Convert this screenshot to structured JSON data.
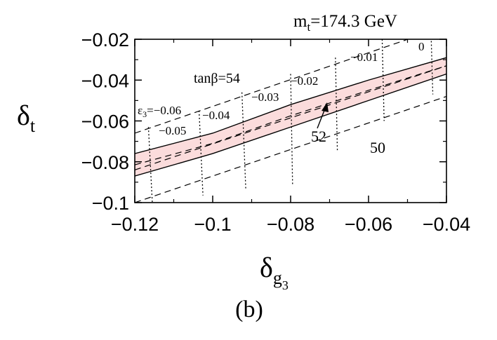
{
  "chart_data": {
    "type": "line",
    "mass_label": "m t=174.3 GeV",
    "mass_parts": {
      "m": "m",
      "sub": "t",
      "value": "=174.3 GeV"
    },
    "panel_label": "(b)",
    "ylabel": {
      "base": "δ",
      "sub": "t"
    },
    "xlabel": {
      "base": "δ",
      "sub": "g",
      "subsub": "3"
    },
    "xlim": [
      -0.12,
      -0.04
    ],
    "ylim": [
      -0.1,
      -0.02
    ],
    "x_ticks": [
      "−0.12",
      "−0.1",
      "−0.08",
      "−0.06",
      "−0.04"
    ],
    "x_tick_values": [
      -0.12,
      -0.1,
      -0.08,
      -0.06,
      -0.04
    ],
    "y_ticks": [
      "−0.02",
      "−0.04",
      "−0.06",
      "−0.08",
      "−0.1"
    ],
    "y_tick_values": [
      -0.02,
      -0.04,
      -0.06,
      -0.08,
      -0.1
    ],
    "band_color": "#fbdcdc",
    "band": {
      "x": [
        -0.12,
        -0.1,
        -0.08,
        -0.06,
        -0.04
      ],
      "upper": [
        -0.076,
        -0.066,
        -0.052,
        -0.04,
        -0.029
      ],
      "lower": [
        -0.087,
        -0.076,
        -0.063,
        -0.05,
        -0.037
      ]
    },
    "tanb_lines": [
      {
        "label": "54",
        "x": [
          -0.12,
          -0.04
        ],
        "y": [
          -0.066,
          -0.0135
        ]
      },
      {
        "label": "52",
        "x": [
          -0.12,
          -0.04
        ],
        "y": [
          -0.084,
          -0.033
        ]
      },
      {
        "label": "50",
        "x": [
          -0.12,
          -0.04
        ],
        "y": [
          -0.1,
          -0.048
        ]
      }
    ],
    "eps_lines": [
      {
        "label": "−0.06",
        "x": [
          -0.1165,
          -0.1155
        ],
        "y": [
          -0.063,
          -0.1
        ]
      },
      {
        "label": "−0.05",
        "x": [
          -0.1035,
          -0.1025
        ],
        "y": [
          -0.055,
          -0.0965
        ]
      },
      {
        "label": "−0.04",
        "x": [
          -0.0925,
          -0.0915
        ],
        "y": [
          -0.046,
          -0.094
        ]
      },
      {
        "label": "−0.03",
        "x": [
          -0.08,
          -0.0795
        ],
        "y": [
          -0.037,
          -0.091
        ]
      },
      {
        "label": "−0.02",
        "x": [
          -0.0685,
          -0.068
        ],
        "y": [
          -0.029,
          -0.075
        ]
      },
      {
        "label": "−0.01",
        "x": [
          -0.0565,
          -0.056
        ],
        "y": [
          -0.02,
          -0.06
        ]
      },
      {
        "label": "0",
        "x": [
          -0.044,
          -0.0435
        ],
        "y": [
          -0.014,
          -0.047
        ]
      }
    ],
    "annotations": {
      "tanb_label": "tanβ=54",
      "tanb_prefix": "tanβ",
      "tanb_value": "=54",
      "eps_first": {
        "base": "ε",
        "sub": "3",
        "value": "=−0.06"
      },
      "eps_labels": [
        "−0.05",
        "−0.04",
        "−0.03",
        "−0.02",
        "−0.01",
        "0"
      ],
      "tanb_inner": [
        "52",
        "50"
      ]
    }
  }
}
